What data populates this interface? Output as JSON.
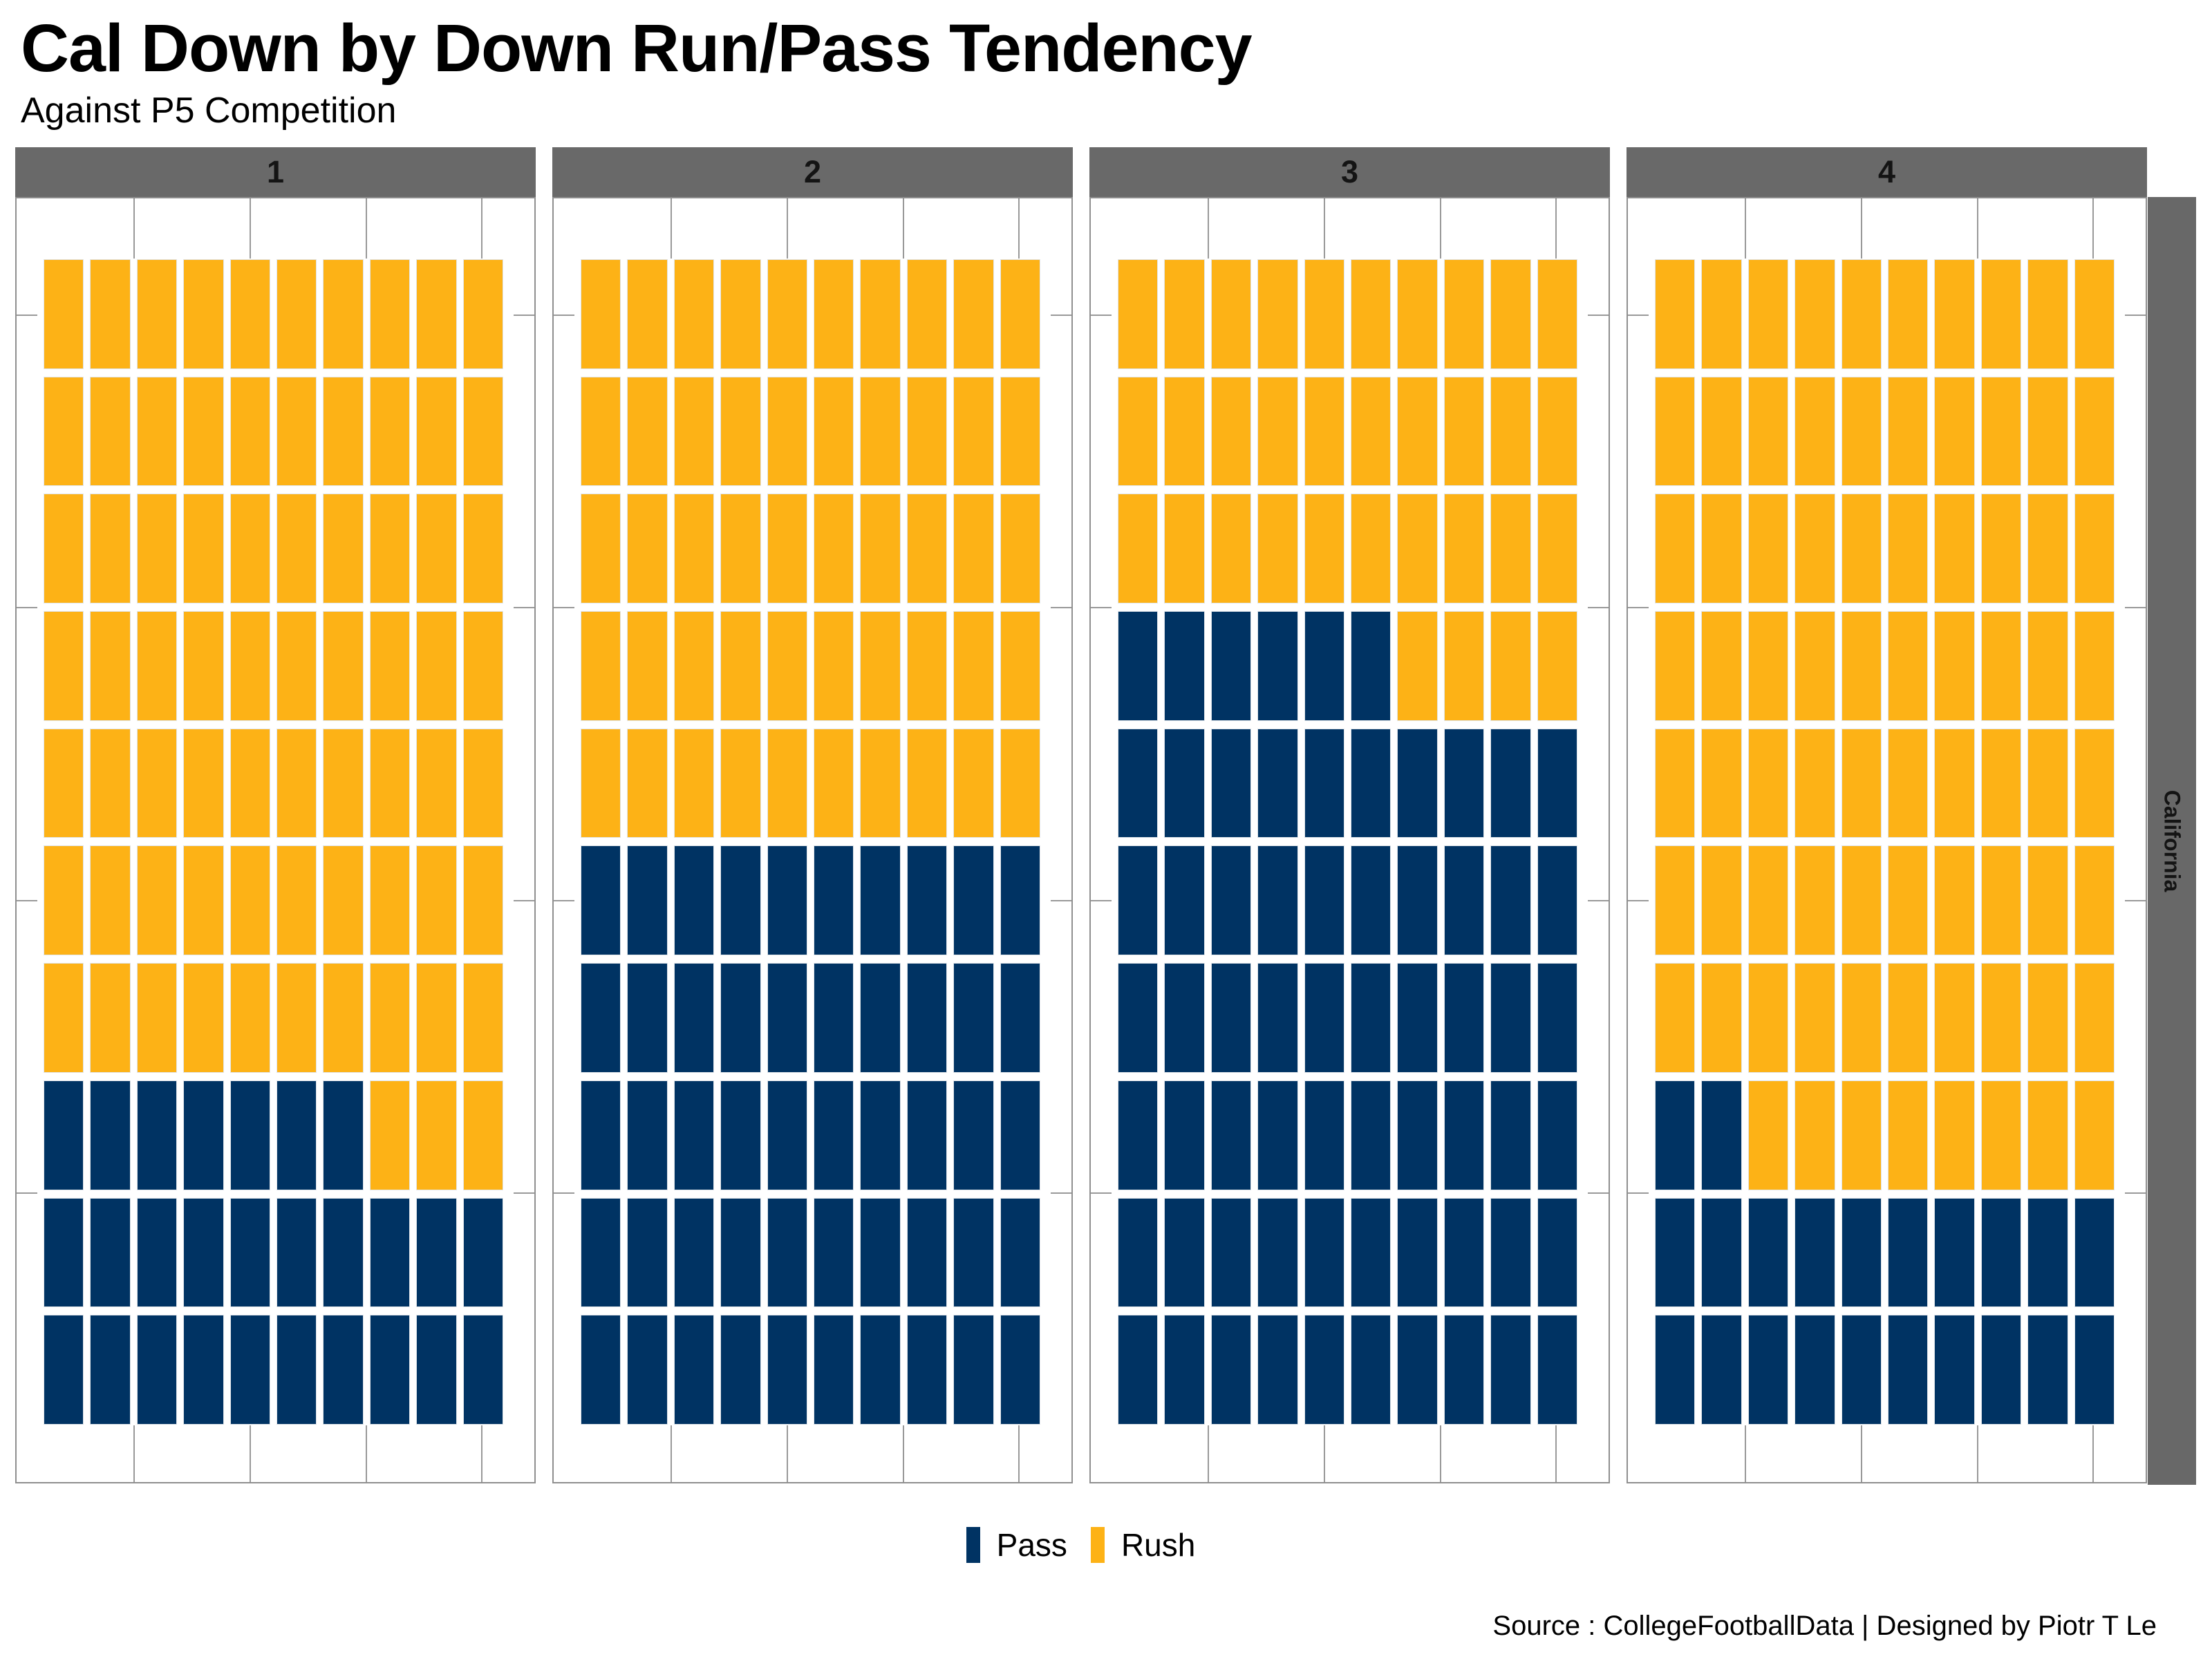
{
  "title": "Cal Down by Down Run/Pass Tendency",
  "subtitle": "Against P5 Competition",
  "source_credit": "Source : CollegeFootballData | Designed by Piotr T Le",
  "facet_row_label": "California",
  "legend": {
    "items": [
      {
        "label": "Pass",
        "color": "#003363"
      },
      {
        "label": "Rush",
        "color": "#FDB216"
      }
    ]
  },
  "colors": {
    "pass": "#003363",
    "rush": "#FDB216",
    "strip_background": "#696969",
    "row_strip_background": "#686868",
    "strip_text": "#141414",
    "panel_border": "#8F8F8F",
    "gridline": "#999999",
    "background": "#FFFFFF"
  },
  "chart_data": {
    "type": "waffle",
    "title": "Cal Down by Down Run/Pass Tendency",
    "subtitle": "Against P5 Competition",
    "facet_columns": [
      "1",
      "2",
      "3",
      "4"
    ],
    "facet_row": "California",
    "grid": {
      "rows": 10,
      "cols": 10,
      "tile_unit_percent": 1
    },
    "fill_order": "bottom-left to top-right, pass first",
    "categories": [
      "Pass",
      "Rush"
    ],
    "series": [
      {
        "facet": "1",
        "values": {
          "Pass": 27,
          "Rush": 73
        }
      },
      {
        "facet": "2",
        "values": {
          "Pass": 50,
          "Rush": 50
        }
      },
      {
        "facet": "3",
        "values": {
          "Pass": 66,
          "Rush": 34
        }
      },
      {
        "facet": "4",
        "values": {
          "Pass": 22,
          "Rush": 78
        }
      }
    ],
    "legend_entries": [
      "Pass",
      "Rush"
    ],
    "legend_position": "bottom",
    "grid_on": true
  }
}
